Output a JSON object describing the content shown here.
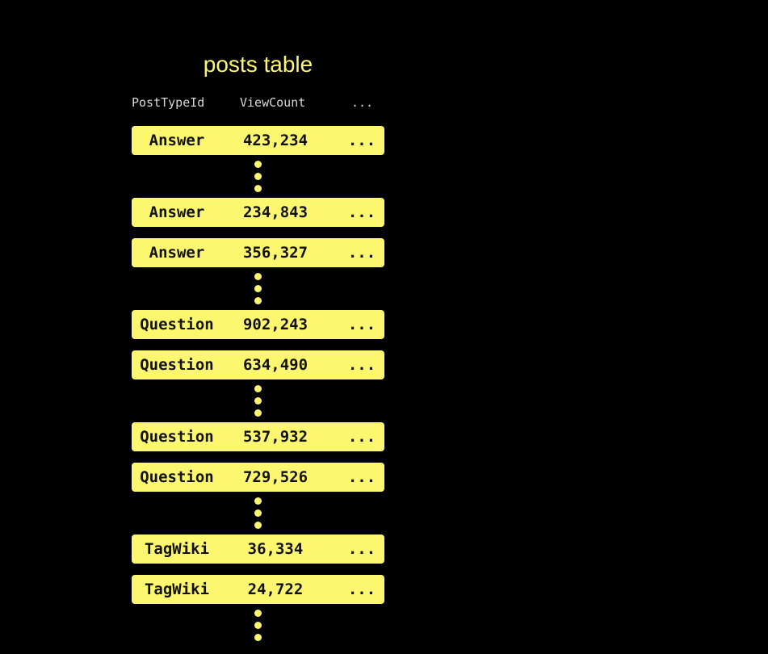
{
  "title": "posts table",
  "columns": [
    "PostTypeId",
    "ViewCount",
    "..."
  ],
  "accent_color": "#fdf76f",
  "groups": [
    {
      "rows": [
        [
          "Answer",
          "423,234",
          "..."
        ]
      ]
    },
    {
      "rows": [
        [
          "Answer",
          "234,843",
          "..."
        ],
        [
          "Answer",
          "356,327",
          "..."
        ]
      ]
    },
    {
      "rows": [
        [
          "Question",
          "902,243",
          "..."
        ],
        [
          "Question",
          "634,490",
          "..."
        ]
      ]
    },
    {
      "rows": [
        [
          "Question",
          "537,932",
          "..."
        ],
        [
          "Question",
          "729,526",
          "..."
        ]
      ]
    },
    {
      "rows": [
        [
          "TagWiki",
          "36,334",
          "..."
        ],
        [
          "TagWiki",
          "24,722",
          "..."
        ]
      ]
    }
  ]
}
